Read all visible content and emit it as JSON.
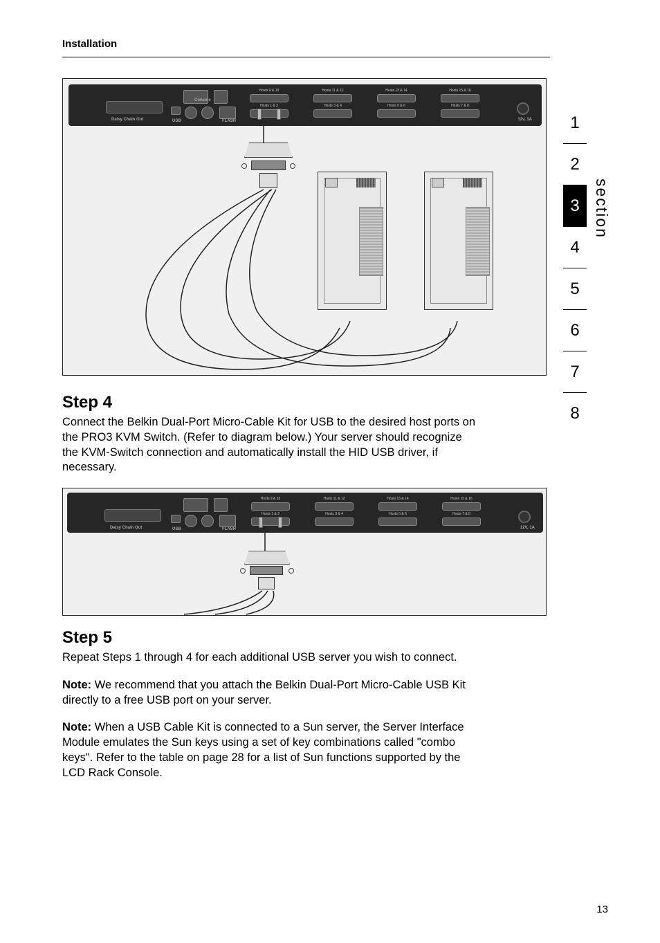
{
  "header": {
    "title": "Installation"
  },
  "kvm_ports": {
    "top_row": [
      "Hosts 9 & 10",
      "Hosts 11 & 12",
      "Hosts 13 & 14",
      "Hosts 15 & 16"
    ],
    "bottom_row": [
      "Hosts 1 & 2",
      "Hosts 3 & 4",
      "Hosts 5 & 6",
      "Hosts 7 & 8"
    ],
    "daisy": "Daisy Chain Out",
    "usb": "USB",
    "flash": "FLASH",
    "pwr": "12v, 1A",
    "pwr2": "12V, 1A",
    "console": "Console"
  },
  "step4": {
    "heading": "Step 4",
    "body": "Connect the Belkin Dual-Port Micro-Cable Kit for USB to the desired host ports on the PRO3 KVM Switch. (Refer to diagram below.) Your server should recognize the KVM-Switch connection and automatically install the HID USB driver, if necessary."
  },
  "step5": {
    "heading": "Step 5",
    "body": "Repeat Steps 1 through 4 for each additional USB server you wish to connect.",
    "note1_label": "Note:",
    "note1": " We recommend that you attach the Belkin Dual-Port Micro-Cable USB Kit directly to a free USB port on your server.",
    "note2_label": "Note:",
    "note2": " When a USB Cable Kit is connected to a Sun server, the Server Interface Module emulates the Sun keys using a set of key combinations called \"combo keys\". Refer to the table on page 28 for a list of Sun functions supported by the LCD Rack Console."
  },
  "nav": {
    "label": "section",
    "items": [
      "1",
      "2",
      "3",
      "4",
      "5",
      "6",
      "7",
      "8"
    ],
    "active_index": 2
  },
  "page_number": "13"
}
